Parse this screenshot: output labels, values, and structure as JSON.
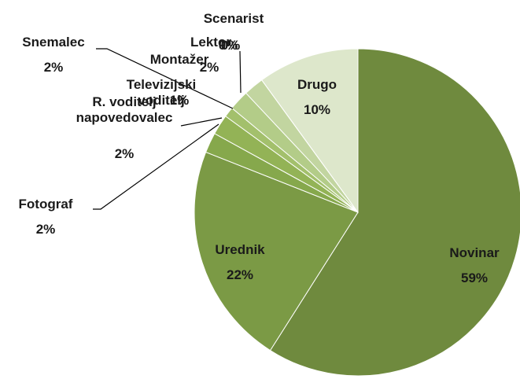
{
  "chart_data": {
    "type": "pie",
    "categories": [
      "Novinar",
      "Urednik",
      "Fotograf",
      "R. voditelj napovedovalec",
      "Televizijski voditelj",
      "Snemalec",
      "Montažer",
      "Lektor",
      "Scenarist",
      "Drugo"
    ],
    "values": [
      59,
      22,
      2,
      2,
      1,
      2,
      2,
      0,
      0,
      10
    ],
    "value_labels": [
      "59%",
      "22%",
      "2%",
      "2%",
      "1%",
      "2%",
      "2%",
      "0%",
      "0%",
      "10%"
    ],
    "colors": [
      "#6f8a3e",
      "#7b9a45",
      "#86a84c",
      "#93b356",
      "#a3c06c",
      "#b3cc88",
      "#c2d5a0",
      "#c9d9ab",
      "#d0deb6",
      "#dde7cb"
    ]
  }
}
